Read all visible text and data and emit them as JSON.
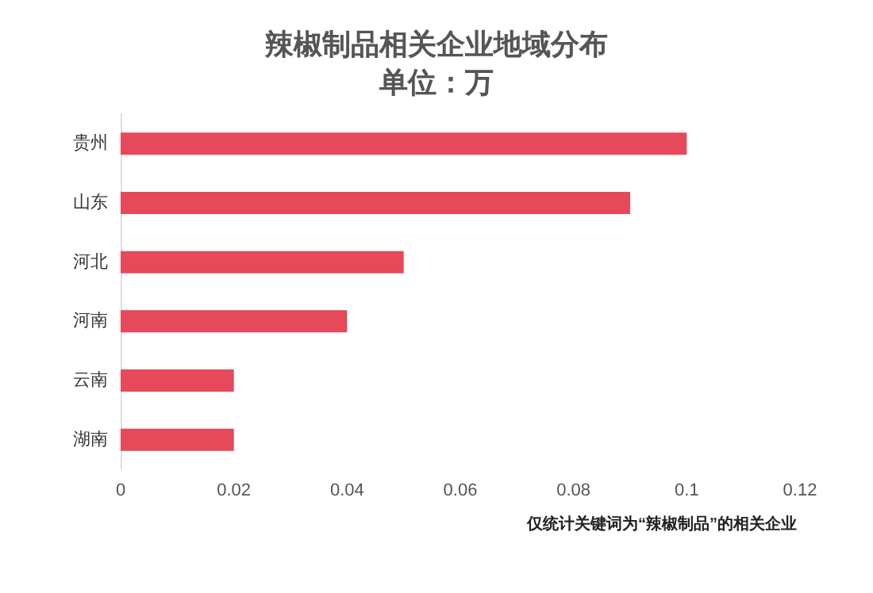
{
  "chart_data": {
    "type": "bar",
    "orientation": "horizontal",
    "title": "辣椒制品相关企业地域分布",
    "subtitle": "单位：万",
    "categories": [
      "贵州",
      "山东",
      "河北",
      "河南",
      "云南",
      "湖南"
    ],
    "values": [
      0.1,
      0.09,
      0.05,
      0.04,
      0.02,
      0.02
    ],
    "color": "#e5495a",
    "xlim": [
      0,
      0.12
    ],
    "xticks": [
      0,
      0.02,
      0.04,
      0.06,
      0.08,
      0.1,
      0.12
    ],
    "grid": false,
    "annotations": [
      "仅统计关键词为“辣椒制品”的相关企业"
    ]
  }
}
